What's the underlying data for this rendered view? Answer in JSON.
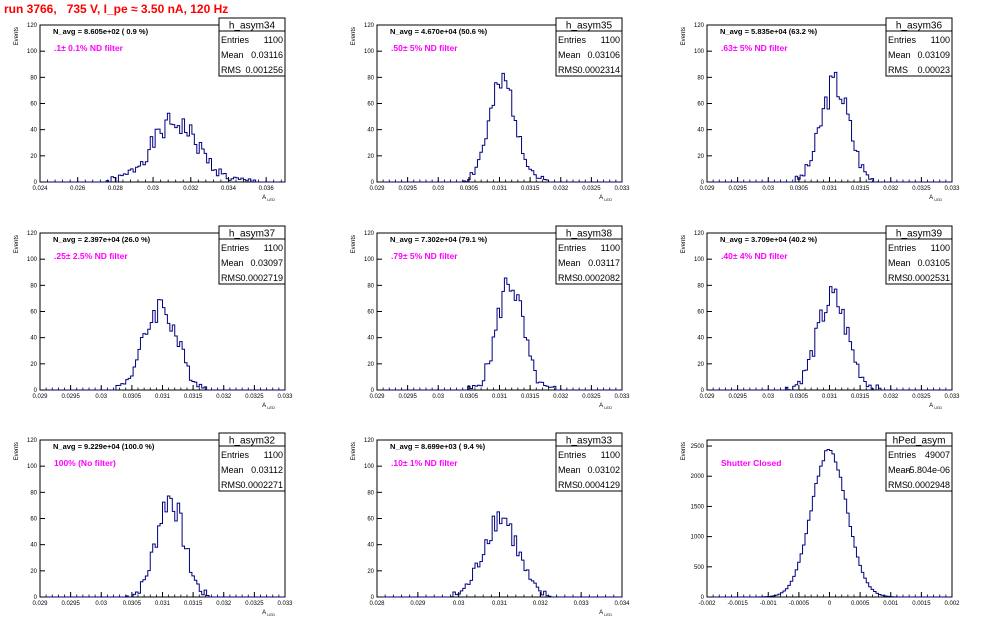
{
  "run_title": "run 3766,   735 V, I_pe ≈ 3.50 nA, 120 Hz",
  "colors": {
    "title": "#ff0000",
    "annotation": "#ff00ff",
    "histogram": "#000080",
    "axes": "#000000"
  },
  "stats_labels": {
    "entries": "Entries",
    "mean": "Mean",
    "rms": "RMS"
  },
  "chart_data": [
    {
      "type": "histogram",
      "name": "h_asym34",
      "ylabel": "Events",
      "xlabel": "A_LED",
      "navg": "N_avg = 8.605e+02 ( 0.9 %)",
      "filter": ".1± 0.1% ND filter",
      "entries": "1100",
      "mean": "0.03116",
      "rms": "0.001256",
      "xlim": [
        0.024,
        0.037
      ],
      "ylim": [
        0,
        120
      ],
      "xticks": [
        "0.024",
        "0.026",
        "0.028",
        "0.03",
        "0.032",
        "0.034",
        "0.036"
      ],
      "xtick_vals": [
        0.024,
        0.026,
        0.028,
        0.03,
        0.032,
        0.034,
        0.036
      ],
      "yticks": [
        0,
        20,
        40,
        60,
        80,
        100,
        120
      ],
      "gen": {
        "mu": 0.03116,
        "sigma": 0.00125,
        "peak": 45,
        "seed": 1,
        "xmin": 0.0275,
        "xmax": 0.0355
      }
    },
    {
      "type": "histogram",
      "name": "h_asym35",
      "ylabel": "Events",
      "xlabel": "A_LED",
      "navg": "N_avg = 4.670e+04 (50.6 %)",
      "filter": ".50± 5% ND filter",
      "entries": "1100",
      "mean": "0.03106",
      "rms": "0.0002314",
      "xlim": [
        0.029,
        0.033
      ],
      "ylim": [
        0,
        120
      ],
      "xticks": [
        "0.029",
        "0.0295",
        "0.03",
        "0.0305",
        "0.031",
        "0.0315",
        "0.032",
        "0.0325",
        "0.033"
      ],
      "xtick_vals": [
        0.029,
        0.0295,
        0.03,
        0.0305,
        0.031,
        0.0315,
        0.032,
        0.0325,
        0.033
      ],
      "yticks": [
        0,
        20,
        40,
        60,
        80,
        100,
        120
      ],
      "gen": {
        "mu": 0.03106,
        "sigma": 0.00023,
        "peak": 74,
        "seed": 2,
        "xmin": 0.0304,
        "xmax": 0.0318
      }
    },
    {
      "type": "histogram",
      "name": "h_asym36",
      "ylabel": "Events",
      "xlabel": "A_LED",
      "navg": "N_avg = 5.835e+04 (63.2 %)",
      "filter": ".63± 5% ND filter",
      "entries": "1100",
      "mean": "0.03109",
      "rms": "0.00023",
      "xlim": [
        0.029,
        0.033
      ],
      "ylim": [
        0,
        120
      ],
      "xticks": [
        "0.029",
        "0.0295",
        "0.03",
        "0.0305",
        "0.031",
        "0.0315",
        "0.032",
        "0.0325",
        "0.033"
      ],
      "xtick_vals": [
        0.029,
        0.0295,
        0.03,
        0.0305,
        0.031,
        0.0315,
        0.032,
        0.0325,
        0.033
      ],
      "yticks": [
        0,
        20,
        40,
        60,
        80,
        100,
        120
      ],
      "gen": {
        "mu": 0.03109,
        "sigma": 0.00023,
        "peak": 75,
        "seed": 3,
        "xmin": 0.0304,
        "xmax": 0.0318
      }
    },
    {
      "type": "histogram",
      "name": "h_asym37",
      "ylabel": "Events",
      "xlabel": "A_LED",
      "navg": "N_avg = 2.397e+04 (26.0 %)",
      "filter": ".25± 2.5% ND filter",
      "entries": "1100",
      "mean": "0.03097",
      "rms": "0.0002719",
      "xlim": [
        0.029,
        0.033
      ],
      "ylim": [
        0,
        120
      ],
      "xticks": [
        "0.029",
        "0.0295",
        "0.03",
        "0.0305",
        "0.031",
        "0.0315",
        "0.032",
        "0.0325",
        "0.033"
      ],
      "xtick_vals": [
        0.029,
        0.0295,
        0.03,
        0.0305,
        0.031,
        0.0315,
        0.032,
        0.0325,
        0.033
      ],
      "yticks": [
        0,
        20,
        40,
        60,
        80,
        100,
        120
      ],
      "gen": {
        "mu": 0.03097,
        "sigma": 0.00027,
        "peak": 64,
        "seed": 4,
        "xmin": 0.0302,
        "xmax": 0.0318
      }
    },
    {
      "type": "histogram",
      "name": "h_asym38",
      "ylabel": "Events",
      "xlabel": "A_LED",
      "navg": "N_avg = 7.302e+04 (79.1 %)",
      "filter": ".79± 5% ND filter",
      "entries": "1100",
      "mean": "0.03117",
      "rms": "0.0002082",
      "xlim": [
        0.029,
        0.033
      ],
      "ylim": [
        0,
        120
      ],
      "xticks": [
        "0.029",
        "0.0295",
        "0.03",
        "0.0305",
        "0.031",
        "0.0315",
        "0.032",
        "0.0325",
        "0.033"
      ],
      "xtick_vals": [
        0.029,
        0.0295,
        0.03,
        0.0305,
        0.031,
        0.0315,
        0.032,
        0.0325,
        0.033
      ],
      "yticks": [
        0,
        20,
        40,
        60,
        80,
        100,
        120
      ],
      "gen": {
        "mu": 0.03117,
        "sigma": 0.00021,
        "peak": 83,
        "seed": 5,
        "xmin": 0.0305,
        "xmax": 0.0319
      }
    },
    {
      "type": "histogram",
      "name": "h_asym39",
      "ylabel": "Events",
      "xlabel": "A_LED",
      "navg": "N_avg = 3.709e+04 (40.2 %)",
      "filter": ".40± 4% ND filter",
      "entries": "1100",
      "mean": "0.03105",
      "rms": "0.0002531",
      "xlim": [
        0.029,
        0.033
      ],
      "ylim": [
        0,
        120
      ],
      "xticks": [
        "0.029",
        "0.0295",
        "0.03",
        "0.0305",
        "0.031",
        "0.0315",
        "0.032",
        "0.0325",
        "0.033"
      ],
      "xtick_vals": [
        0.029,
        0.0295,
        0.03,
        0.0305,
        0.031,
        0.0315,
        0.032,
        0.0325,
        0.033
      ],
      "yticks": [
        0,
        20,
        40,
        60,
        80,
        100,
        120
      ],
      "gen": {
        "mu": 0.03105,
        "sigma": 0.00025,
        "peak": 70,
        "seed": 6,
        "xmin": 0.0303,
        "xmax": 0.0319
      }
    },
    {
      "type": "histogram",
      "name": "h_asym32",
      "ylabel": "Events",
      "xlabel": "A_LED",
      "navg": "N_avg = 9.229e+04 (100.0 %)",
      "filter": "100% (No filter)",
      "entries": "1100",
      "mean": "0.03112",
      "rms": "0.0002271",
      "xlim": [
        0.029,
        0.033
      ],
      "ylim": [
        0,
        120
      ],
      "xticks": [
        "0.029",
        "0.0295",
        "0.03",
        "0.0305",
        "0.031",
        "0.0315",
        "0.032",
        "0.0325",
        "0.033"
      ],
      "xtick_vals": [
        0.029,
        0.0295,
        0.03,
        0.0305,
        0.031,
        0.0315,
        0.032,
        0.0325,
        0.033
      ],
      "yticks": [
        0,
        20,
        40,
        60,
        80,
        100,
        120
      ],
      "gen": {
        "mu": 0.03112,
        "sigma": 0.00022,
        "peak": 76,
        "seed": 7,
        "xmin": 0.0304,
        "xmax": 0.0318
      }
    },
    {
      "type": "histogram",
      "name": "h_asym33",
      "ylabel": "Events",
      "xlabel": "A_LED",
      "navg": "N_avg = 8.699e+03 ( 9.4 %)",
      "filter": ".10± 1% ND filter",
      "entries": "1100",
      "mean": "0.03102",
      "rms": "0.0004129",
      "xlim": [
        0.028,
        0.034
      ],
      "ylim": [
        0,
        120
      ],
      "xticks": [
        "0.028",
        "0.029",
        "0.03",
        "0.031",
        "0.032",
        "0.033",
        "0.034"
      ],
      "xtick_vals": [
        0.028,
        0.029,
        0.03,
        0.031,
        0.032,
        0.033,
        0.034
      ],
      "yticks": [
        0,
        20,
        40,
        60,
        80,
        100,
        120
      ],
      "gen": {
        "mu": 0.03102,
        "sigma": 0.00041,
        "peak": 62,
        "seed": 8,
        "xmin": 0.0298,
        "xmax": 0.0323
      }
    },
    {
      "type": "histogram",
      "name": "hPed_asym",
      "ylabel": "Events",
      "xlabel": "",
      "navg": "",
      "filter": "Shutter Closed",
      "entries": "49007",
      "mean": "-5.804e-06",
      "rms": "0.0002948",
      "xlim": [
        -0.002,
        0.002
      ],
      "ylim": [
        0,
        2600
      ],
      "xticks": [
        "-0.002",
        "-0.0015",
        "-0.001",
        "-0.0005",
        "0",
        "0.0005",
        "0.001",
        "0.0015",
        "0.002"
      ],
      "xtick_vals": [
        -0.002,
        -0.0015,
        -0.001,
        -0.0005,
        0,
        0.0005,
        0.001,
        0.0015,
        0.002
      ],
      "yticks": [
        0,
        500,
        1000,
        1500,
        2000,
        2500
      ],
      "gen": {
        "mu": -5.8e-06,
        "sigma": 0.00029,
        "peak": 2420,
        "seed": 9,
        "xmin": -0.0012,
        "xmax": 0.0012,
        "smooth": true
      }
    }
  ]
}
